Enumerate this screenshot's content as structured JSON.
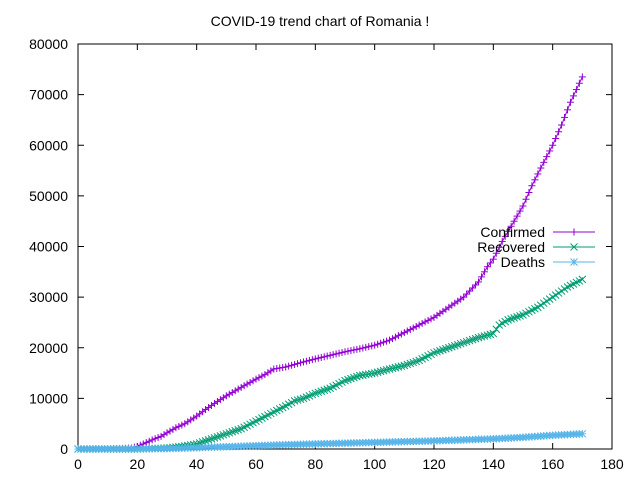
{
  "chart_data": {
    "type": "line",
    "title": "COVID-19 trend chart of Romania !",
    "xlabel": "",
    "ylabel": "",
    "xlim": [
      0,
      180
    ],
    "ylim": [
      0,
      80000
    ],
    "x_ticks": [
      0,
      20,
      40,
      60,
      80,
      100,
      120,
      140,
      160,
      180
    ],
    "y_ticks": [
      0,
      10000,
      20000,
      30000,
      40000,
      50000,
      60000,
      70000,
      80000
    ],
    "grid": false,
    "legend_position": "right",
    "series": [
      {
        "name": "Confirmed",
        "color": "#9400d3",
        "marker": "plus",
        "points": [
          [
            0,
            0
          ],
          [
            10,
            10
          ],
          [
            18,
            200
          ],
          [
            20,
            500
          ],
          [
            22,
            1000
          ],
          [
            25,
            1800
          ],
          [
            28,
            2500
          ],
          [
            30,
            3200
          ],
          [
            33,
            4200
          ],
          [
            36,
            5000
          ],
          [
            40,
            6500
          ],
          [
            43,
            7800
          ],
          [
            46,
            9000
          ],
          [
            50,
            10500
          ],
          [
            53,
            11500
          ],
          [
            56,
            12500
          ],
          [
            60,
            13800
          ],
          [
            63,
            14700
          ],
          [
            66,
            15800
          ],
          [
            70,
            16200
          ],
          [
            73,
            16700
          ],
          [
            76,
            17200
          ],
          [
            80,
            17800
          ],
          [
            85,
            18500
          ],
          [
            90,
            19200
          ],
          [
            95,
            19800
          ],
          [
            100,
            20500
          ],
          [
            105,
            21500
          ],
          [
            110,
            23000
          ],
          [
            115,
            24500
          ],
          [
            120,
            26000
          ],
          [
            125,
            28000
          ],
          [
            130,
            30000
          ],
          [
            135,
            33000
          ],
          [
            138,
            36000
          ],
          [
            140,
            37500
          ],
          [
            143,
            41000
          ],
          [
            146,
            44000
          ],
          [
            150,
            48000
          ],
          [
            153,
            52000
          ],
          [
            156,
            55500
          ],
          [
            160,
            60000
          ],
          [
            163,
            64000
          ],
          [
            166,
            68500
          ],
          [
            168,
            71000
          ],
          [
            170,
            73500
          ]
        ]
      },
      {
        "name": "Recovered",
        "color": "#009e73",
        "marker": "cross",
        "points": [
          [
            0,
            0
          ],
          [
            20,
            0
          ],
          [
            30,
            200
          ],
          [
            35,
            500
          ],
          [
            40,
            1000
          ],
          [
            45,
            2000
          ],
          [
            50,
            3000
          ],
          [
            55,
            4000
          ],
          [
            60,
            5500
          ],
          [
            65,
            7000
          ],
          [
            70,
            8500
          ],
          [
            73,
            9500
          ],
          [
            76,
            10000
          ],
          [
            80,
            11000
          ],
          [
            85,
            12000
          ],
          [
            90,
            13500
          ],
          [
            95,
            14500
          ],
          [
            100,
            15000
          ],
          [
            105,
            15800
          ],
          [
            110,
            16500
          ],
          [
            115,
            17500
          ],
          [
            120,
            19000
          ],
          [
            125,
            20000
          ],
          [
            130,
            21000
          ],
          [
            135,
            22000
          ],
          [
            140,
            22800
          ],
          [
            142,
            24500
          ],
          [
            145,
            25500
          ],
          [
            150,
            26500
          ],
          [
            155,
            28000
          ],
          [
            160,
            30000
          ],
          [
            165,
            32000
          ],
          [
            170,
            33500
          ]
        ]
      },
      {
        "name": "Deaths",
        "color": "#56b4e9",
        "marker": "star",
        "points": [
          [
            0,
            0
          ],
          [
            20,
            10
          ],
          [
            30,
            80
          ],
          [
            40,
            250
          ],
          [
            50,
            450
          ],
          [
            60,
            650
          ],
          [
            70,
            850
          ],
          [
            80,
            1000
          ],
          [
            90,
            1150
          ],
          [
            100,
            1300
          ],
          [
            110,
            1450
          ],
          [
            120,
            1600
          ],
          [
            130,
            1800
          ],
          [
            140,
            2000
          ],
          [
            150,
            2300
          ],
          [
            160,
            2700
          ],
          [
            170,
            3000
          ]
        ]
      }
    ]
  }
}
